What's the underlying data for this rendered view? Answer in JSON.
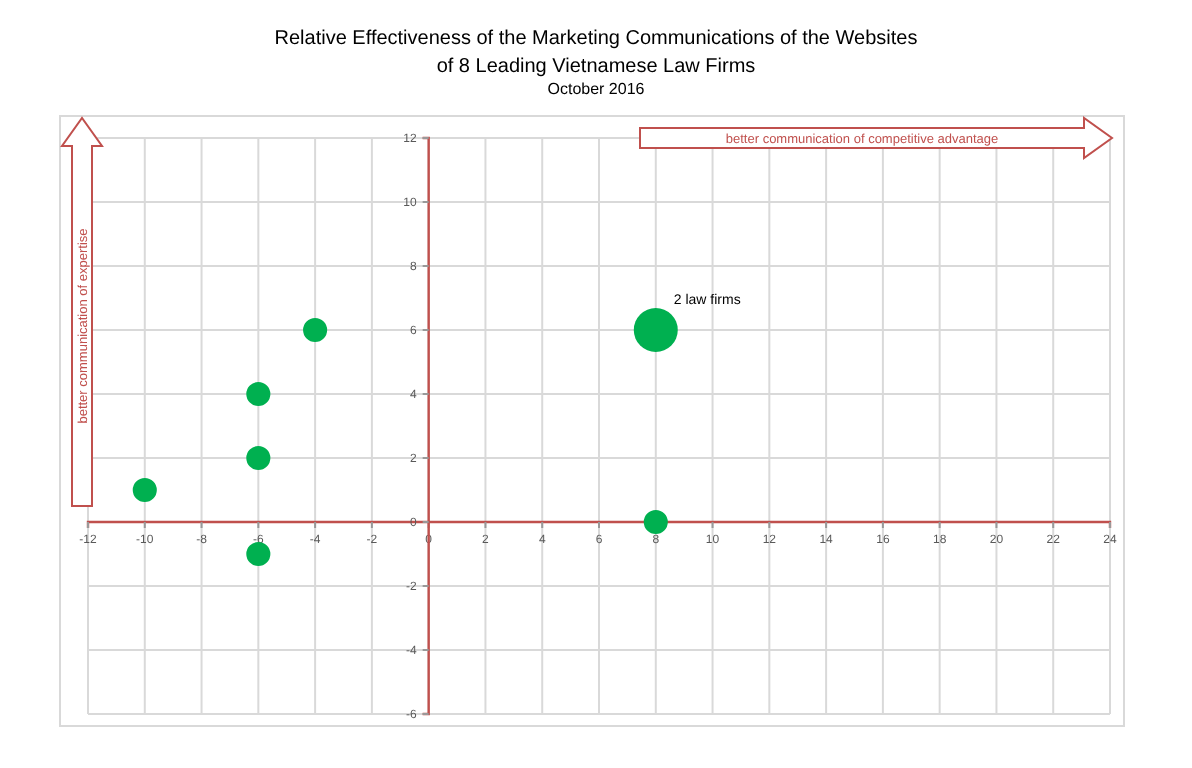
{
  "chart_data": {
    "type": "bubble",
    "title": "Relative Effectiveness of the Marketing Communications of the Websites of 8 Leading Vietnamese Law Firms",
    "subtitle": "October 2016",
    "x": [
      -10,
      -6,
      -6,
      -6,
      -4,
      8,
      8
    ],
    "values": [
      1,
      4,
      2,
      -1,
      6,
      6,
      0
    ],
    "sizes": [
      0.3,
      0.3,
      0.3,
      0.3,
      0.3,
      1,
      0.3
    ],
    "color": "#00b050",
    "marker": "circle",
    "grid": true,
    "xlim": [
      -12,
      24
    ],
    "xticks": [
      -12,
      -10,
      -8,
      -6,
      -4,
      -2,
      0,
      2,
      4,
      6,
      8,
      10,
      12,
      14,
      16,
      18,
      20,
      22,
      24
    ],
    "ylim": [
      -6,
      12
    ],
    "yticks": [
      -6,
      -4,
      -2,
      0,
      2,
      4,
      6,
      8,
      10,
      12
    ],
    "annotations": [
      {
        "text": "2 law firms",
        "x": 8,
        "y": 6
      },
      "better communication of competitive advantage",
      "better communication of expertise"
    ]
  }
}
